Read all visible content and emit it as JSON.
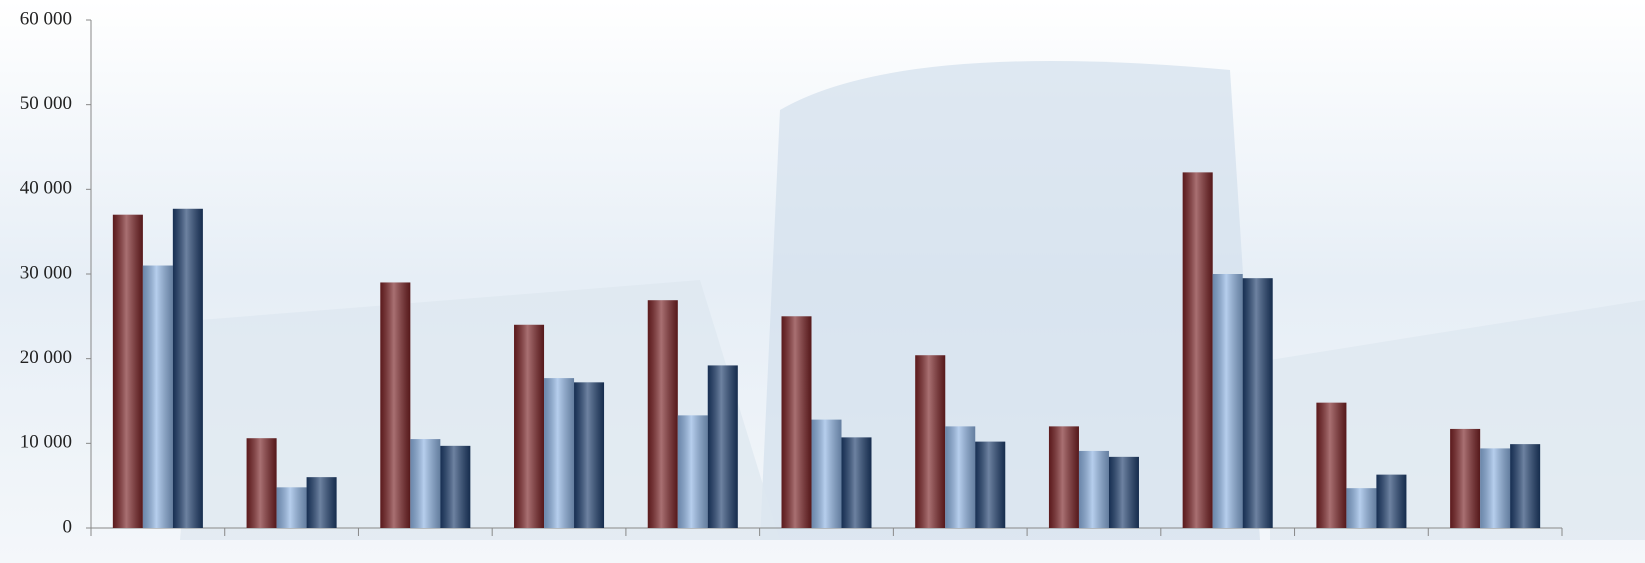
{
  "chart_data": {
    "type": "bar",
    "categories": [
      null,
      null,
      null,
      null,
      null,
      null,
      null,
      null,
      null,
      null,
      null
    ],
    "series": [
      {
        "color": "#7a2326",
        "values": [
          37000,
          10600,
          29000,
          24000,
          26900,
          25000,
          20400,
          12000,
          42000,
          14800,
          11700
        ]
      },
      {
        "color": "#8fb4e3",
        "values": [
          31000,
          4800,
          10500,
          17700,
          13300,
          12800,
          12000,
          9100,
          30000,
          4700,
          9400
        ]
      },
      {
        "color": "#1f3f6e",
        "values": [
          37700,
          6000,
          9700,
          17200,
          19200,
          10700,
          10200,
          8400,
          29500,
          6300,
          9900
        ]
      }
    ],
    "ylim": [
      0,
      60000
    ],
    "yticks": [
      0,
      {
        "value": 10000,
        "label": "10 000"
      },
      {
        "value": 20000,
        "label": "20 000"
      },
      {
        "value": 30000,
        "label": "30 000"
      },
      {
        "value": 40000,
        "label": "40 000"
      },
      {
        "value": 50000,
        "label": "50 000"
      },
      {
        "value": 60000,
        "label": "60 000"
      }
    ],
    "grid": false
  }
}
